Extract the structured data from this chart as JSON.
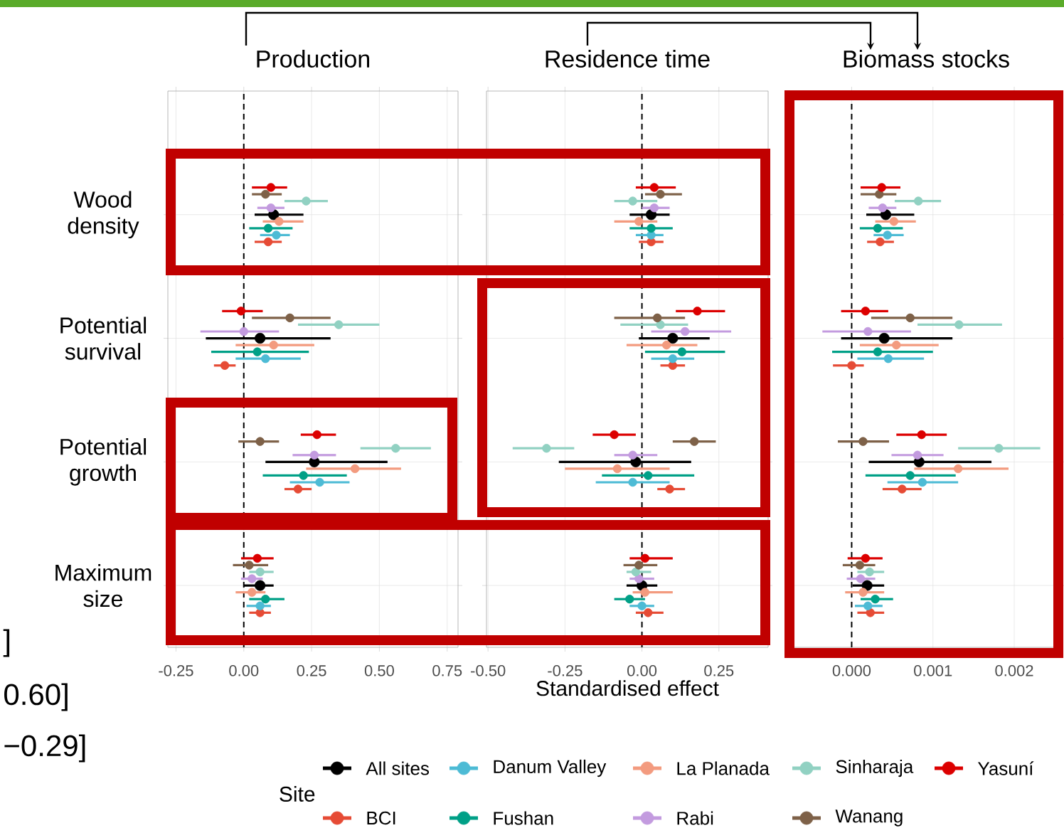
{
  "chart_data": [
    {
      "type": "scatter",
      "orientation": "horizontal",
      "title": "Production",
      "categories": [
        "Wood density",
        "Potential survival",
        "Potential growth",
        "Maximum size"
      ],
      "marker": "circle",
      "grid": true,
      "xlim": [
        -0.28,
        0.79
      ],
      "xticks": [
        -0.25,
        {
          "value": 0,
          "label": "0.00"
        },
        0.25,
        {
          "value": 0.5,
          "label": "0.50"
        },
        0.75
      ],
      "legend": "bottom",
      "legend_title": "Site",
      "ref_lines": [
        {
          "axis": "x",
          "value": 0,
          "line_style": "dashed"
        }
      ],
      "annotations": [
        "]",
        "0.60]",
        "−0.29]"
      ],
      "series": [
        {
          "name": "All sites",
          "color": "#000000",
          "values": [
            0.11,
            0.06,
            0.26,
            0.06
          ],
          "errors": [
            [
              0.04,
              0.22
            ],
            [
              -0.14,
              0.32
            ],
            [
              0.08,
              0.53
            ],
            [
              0.0,
              0.11
            ]
          ]
        },
        {
          "name": "BCI",
          "color": "#e64b35",
          "values": [
            0.09,
            -0.07,
            0.2,
            0.06
          ],
          "errors": [
            [
              0.04,
              0.14
            ],
            [
              -0.11,
              -0.03
            ],
            [
              0.15,
              0.25
            ],
            [
              0.02,
              0.1
            ]
          ]
        },
        {
          "name": "Danum Valley",
          "color": "#4dbbd5",
          "values": [
            0.12,
            0.08,
            0.28,
            0.06
          ],
          "errors": [
            [
              0.06,
              0.17
            ],
            [
              -0.03,
              0.21
            ],
            [
              0.17,
              0.39
            ],
            [
              0.01,
              0.1
            ]
          ]
        },
        {
          "name": "Fushan",
          "color": "#00a087",
          "values": [
            0.09,
            0.05,
            0.22,
            0.08
          ],
          "errors": [
            [
              0.02,
              0.18
            ],
            [
              -0.12,
              0.24
            ],
            [
              0.07,
              0.38
            ],
            [
              0.02,
              0.15
            ]
          ]
        },
        {
          "name": "La Planada",
          "color": "#f39b7f",
          "values": [
            0.13,
            0.11,
            0.41,
            0.03
          ],
          "errors": [
            [
              0.07,
              0.22
            ],
            [
              -0.03,
              0.26
            ],
            [
              0.23,
              0.58
            ],
            [
              -0.03,
              0.08
            ]
          ]
        },
        {
          "name": "Rabi",
          "color": "#c39bdf",
          "values": [
            0.1,
            0.0,
            0.26,
            0.03
          ],
          "errors": [
            [
              0.05,
              0.15
            ],
            [
              -0.16,
              0.13
            ],
            [
              0.18,
              0.34
            ],
            [
              -0.01,
              0.07
            ]
          ]
        },
        {
          "name": "Sinharaja",
          "color": "#91d1c2",
          "values": [
            0.23,
            0.35,
            0.56,
            0.06
          ],
          "errors": [
            [
              0.15,
              0.31
            ],
            [
              0.2,
              0.5
            ],
            [
              0.43,
              0.69
            ],
            [
              0.02,
              0.11
            ]
          ]
        },
        {
          "name": "Wanang",
          "color": "#7e6148",
          "values": [
            0.08,
            0.17,
            0.06,
            0.02
          ],
          "errors": [
            [
              0.03,
              0.14
            ],
            [
              0.03,
              0.32
            ],
            [
              -0.02,
              0.13
            ],
            [
              -0.04,
              0.09
            ]
          ]
        },
        {
          "name": "Yasuní",
          "color": "#dc0000",
          "values": [
            0.1,
            -0.01,
            0.27,
            0.05
          ],
          "errors": [
            [
              0.03,
              0.16
            ],
            [
              -0.08,
              0.07
            ],
            [
              0.21,
              0.34
            ],
            [
              -0.01,
              0.11
            ]
          ]
        }
      ]
    },
    {
      "type": "scatter",
      "orientation": "horizontal",
      "title": "Residence time",
      "xlabel": "Standardised effect",
      "categories": [
        null,
        null,
        null,
        null
      ],
      "marker": "circle",
      "grid": true,
      "tick_labels": "x",
      "xlim": [
        -0.505,
        0.41
      ],
      "xticks": [
        {
          "value": -0.5,
          "label": "-0.50"
        },
        -0.25,
        {
          "value": 0,
          "label": "0.00"
        },
        0.25
      ],
      "ref_lines": [
        {
          "axis": "x",
          "value": 0,
          "line_style": "dashed"
        }
      ],
      "series": [
        {
          "color": "#000000",
          "values": [
            0.03,
            0.1,
            -0.02,
            0.0
          ],
          "errors": [
            [
              -0.04,
              0.09
            ],
            [
              -0.01,
              0.22
            ],
            [
              -0.27,
              0.16
            ],
            [
              -0.05,
              0.05
            ]
          ]
        },
        {
          "color": "#e64b35",
          "values": [
            0.03,
            0.1,
            0.09,
            0.02
          ],
          "errors": [
            [
              -0.01,
              0.07
            ],
            [
              0.06,
              0.14
            ],
            [
              0.05,
              0.14
            ],
            [
              -0.02,
              0.07
            ]
          ]
        },
        {
          "color": "#4dbbd5",
          "values": [
            0.03,
            0.1,
            -0.03,
            0.0
          ],
          "errors": [
            [
              -0.02,
              0.07
            ],
            [
              0.03,
              0.17
            ],
            [
              -0.15,
              0.09
            ],
            [
              -0.04,
              0.04
            ]
          ]
        },
        {
          "color": "#00a087",
          "values": [
            0.03,
            0.13,
            0.02,
            -0.04
          ],
          "errors": [
            [
              -0.04,
              0.1
            ],
            [
              0.01,
              0.27
            ],
            [
              -0.13,
              0.17
            ],
            [
              -0.09,
              0.01
            ]
          ]
        },
        {
          "color": "#f39b7f",
          "values": [
            -0.01,
            0.08,
            -0.08,
            0.01
          ],
          "errors": [
            [
              -0.09,
              0.05
            ],
            [
              -0.05,
              0.18
            ],
            [
              -0.25,
              0.09
            ],
            [
              -0.03,
              0.1
            ]
          ]
        },
        {
          "color": "#c39bdf",
          "values": [
            0.04,
            0.14,
            -0.03,
            -0.01
          ],
          "errors": [
            [
              0.0,
              0.09
            ],
            [
              0.03,
              0.29
            ],
            [
              -0.09,
              0.05
            ],
            [
              -0.04,
              0.04
            ]
          ]
        },
        {
          "color": "#91d1c2",
          "values": [
            -0.03,
            0.06,
            -0.31,
            -0.02
          ],
          "errors": [
            [
              -0.09,
              0.05
            ],
            [
              -0.07,
              0.15
            ],
            [
              -0.42,
              -0.22
            ],
            [
              -0.05,
              0.03
            ]
          ]
        },
        {
          "color": "#7e6148",
          "values": [
            0.06,
            0.05,
            0.17,
            -0.01
          ],
          "errors": [
            [
              0.01,
              0.13
            ],
            [
              -0.09,
              0.14
            ],
            [
              0.1,
              0.24
            ],
            [
              -0.06,
              0.05
            ]
          ]
        },
        {
          "color": "#dc0000",
          "values": [
            0.04,
            0.18,
            -0.09,
            0.01
          ],
          "errors": [
            [
              -0.02,
              0.11
            ],
            [
              0.11,
              0.27
            ],
            [
              -0.16,
              -0.02
            ],
            [
              -0.04,
              0.1
            ]
          ]
        }
      ]
    },
    {
      "type": "scatter",
      "orientation": "horizontal",
      "title": "Biomass stocks",
      "categories": [
        null,
        null,
        null,
        null
      ],
      "marker": "circle",
      "grid": true,
      "tick_labels": "x",
      "xlim": [
        -0.00073,
        0.00256
      ],
      "xticks": [
        {
          "value": 0,
          "label": "0.000"
        },
        0.001,
        0.002
      ],
      "ref_lines": [
        {
          "axis": "x",
          "value": 0,
          "line_style": "dashed"
        }
      ],
      "series": [
        {
          "color": "#000000",
          "values": [
            0.00042,
            0.0004,
            0.00083,
            0.00019
          ],
          "errors": [
            [
              0.00018,
              0.00077
            ],
            [
              -0.00013,
              0.00124
            ],
            [
              0.00021,
              0.00172
            ],
            [
              1e-05,
              0.0004
            ]
          ]
        },
        {
          "color": "#e64b35",
          "values": [
            0.00035,
            0.0,
            0.00062,
            0.00023
          ],
          "errors": [
            [
              0.00019,
              0.00052
            ],
            [
              -0.00023,
              0.00015
            ],
            [
              0.00038,
              0.00086
            ],
            [
              7e-05,
              0.0004
            ]
          ]
        },
        {
          "color": "#4dbbd5",
          "values": [
            0.00044,
            0.00045,
            0.00087,
            0.0002
          ],
          "errors": [
            [
              0.00027,
              0.00064
            ],
            [
              7e-05,
              0.00089
            ],
            [
              0.00044,
              0.00131
            ],
            [
              4e-05,
              0.00038
            ]
          ]
        },
        {
          "color": "#00a087",
          "values": [
            0.00032,
            0.00032,
            0.00072,
            0.00029
          ],
          "errors": [
            [
              0.0001,
              0.00063
            ],
            [
              -0.00024,
              0.001
            ],
            [
              0.00017,
              0.00128
            ],
            [
              0.00011,
              0.00051
            ]
          ]
        },
        {
          "color": "#f39b7f",
          "values": [
            0.00052,
            0.00055,
            0.00131,
            0.00014
          ],
          "errors": [
            [
              0.00029,
              0.00079
            ],
            [
              0.0001,
              0.00107
            ],
            [
              0.00077,
              0.00193
            ],
            [
              -8e-05,
              0.0004
            ]
          ]
        },
        {
          "color": "#c39bdf",
          "values": [
            0.00038,
            0.0002,
            0.00081,
            0.00011
          ],
          "errors": [
            [
              0.00021,
              0.00055
            ],
            [
              -0.00036,
              0.00073
            ],
            [
              0.00049,
              0.00113
            ],
            [
              -6e-05,
              0.00029
            ]
          ]
        },
        {
          "color": "#91d1c2",
          "values": [
            0.00082,
            0.00132,
            0.00181,
            0.00022
          ],
          "errors": [
            [
              0.00053,
              0.0011
            ],
            [
              0.00081,
              0.00185
            ],
            [
              0.00131,
              0.00232
            ],
            [
              7e-05,
              0.0004
            ]
          ]
        },
        {
          "color": "#7e6148",
          "values": [
            0.00034,
            0.00072,
            0.00014,
            0.0001
          ],
          "errors": [
            [
              0.00011,
              0.00055
            ],
            [
              0.00024,
              0.00124
            ],
            [
              -0.00017,
              0.00046
            ],
            [
              -0.00011,
              0.00029
            ]
          ]
        },
        {
          "color": "#dc0000",
          "values": [
            0.00037,
            0.00017,
            0.00086,
            0.00017
          ],
          "errors": [
            [
              0.00011,
              0.0006
            ],
            [
              -0.00013,
              0.00045
            ],
            [
              0.00055,
              0.00117
            ],
            [
              -5e-05,
              0.00038
            ]
          ]
        }
      ]
    }
  ]
}
